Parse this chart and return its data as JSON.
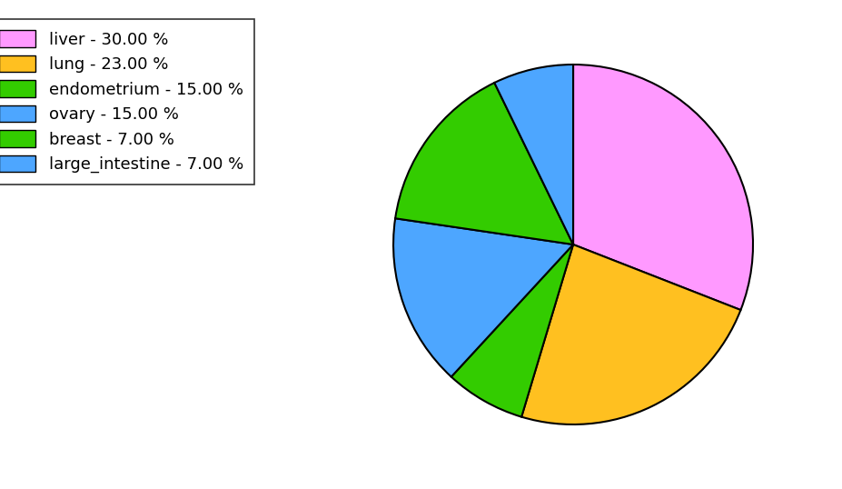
{
  "labels": [
    "liver",
    "lung",
    "breast",
    "ovary",
    "endometrium",
    "large_intestine"
  ],
  "values": [
    30.0,
    23.0,
    7.0,
    15.0,
    15.0,
    7.0
  ],
  "colors": [
    "#FF99FF",
    "#FFC020",
    "#33CC00",
    "#4DA6FF",
    "#33CC00",
    "#4DA6FF"
  ],
  "legend_labels": [
    "liver - 30.00 %",
    "lung - 23.00 %",
    "endometrium - 15.00 %",
    "ovary - 15.00 %",
    "breast - 7.00 %",
    "large_intestine - 7.00 %"
  ],
  "legend_colors": [
    "#FF99FF",
    "#FFC020",
    "#33CC00",
    "#4DA6FF",
    "#33CC00",
    "#4DA6FF"
  ],
  "startangle": 90,
  "figsize": [
    9.28,
    5.38
  ],
  "dpi": 100
}
